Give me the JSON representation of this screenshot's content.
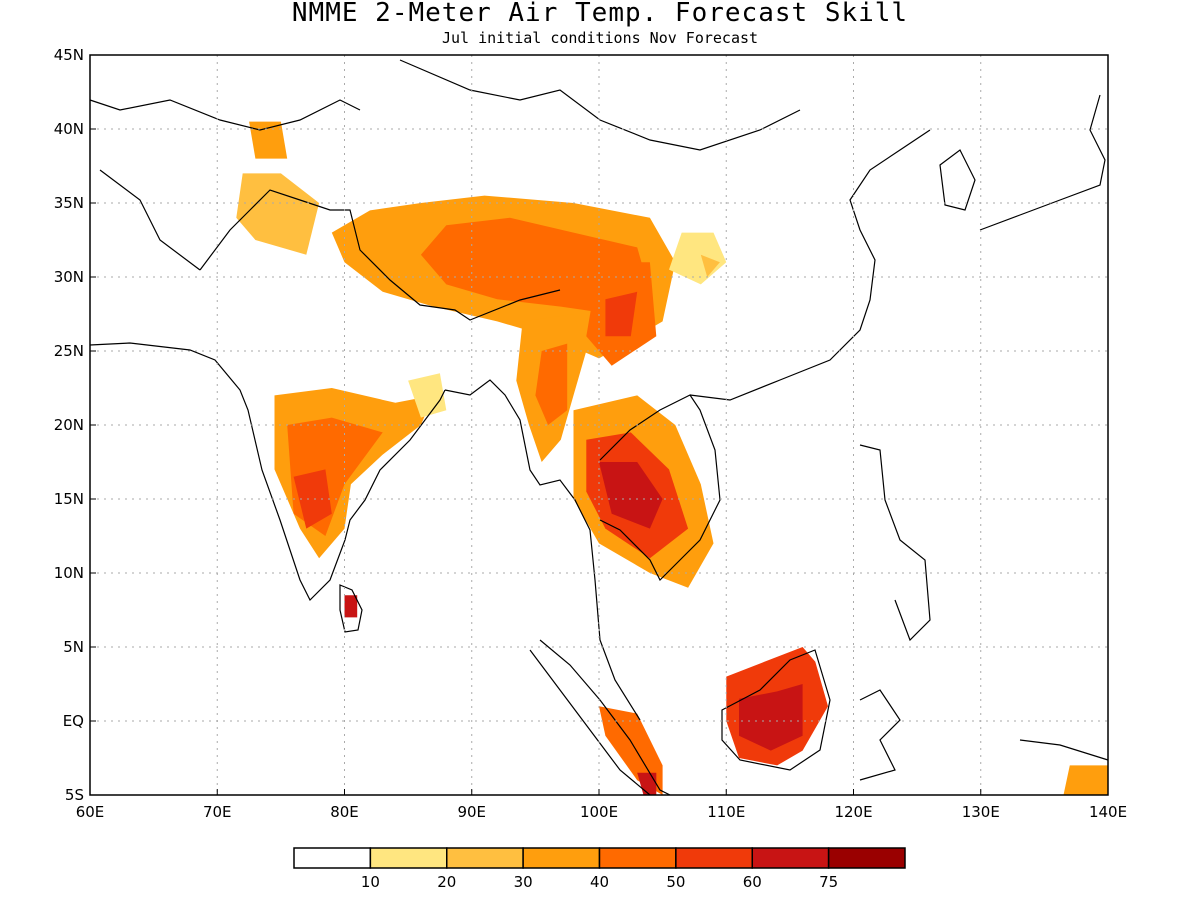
{
  "title": "NMME 2-Meter Air Temp. Forecast Skill",
  "subtitle": "Jul initial conditions   Nov Forecast",
  "map": {
    "lon_range": [
      60,
      140
    ],
    "lat_range": [
      -5,
      45
    ],
    "x_ticks": [
      "60E",
      "70E",
      "80E",
      "90E",
      "100E",
      "110E",
      "120E",
      "130E",
      "140E"
    ],
    "y_ticks": [
      "5S",
      "EQ",
      "5N",
      "10N",
      "15N",
      "20N",
      "25N",
      "30N",
      "35N",
      "40N",
      "45N"
    ],
    "grid": "dotted"
  },
  "colorbar": {
    "colors": [
      "#ffffff",
      "#ffe680",
      "#ffbf40",
      "#ff9e0d",
      "#ff6a00",
      "#f03a0a",
      "#c81414",
      "#9a0000"
    ],
    "labels": [
      "10",
      "20",
      "30",
      "40",
      "50",
      "60",
      "75"
    ]
  },
  "skill_regions": [
    {
      "name": "tibetan-plateau",
      "level": 3,
      "pts": [
        [
          86,
          35
        ],
        [
          91,
          35.5
        ],
        [
          98,
          35
        ],
        [
          104,
          34
        ],
        [
          106,
          31
        ],
        [
          105,
          27
        ],
        [
          100,
          24.5
        ],
        [
          96,
          26
        ],
        [
          92,
          27
        ],
        [
          87,
          28
        ],
        [
          83,
          29
        ],
        [
          80,
          31
        ],
        [
          79,
          33
        ],
        [
          82,
          34.5
        ]
      ]
    },
    {
      "name": "tibet-core",
      "level": 4,
      "pts": [
        [
          88,
          33.5
        ],
        [
          93,
          34
        ],
        [
          98,
          33
        ],
        [
          103,
          32
        ],
        [
          104,
          29
        ],
        [
          101,
          27.5
        ],
        [
          97,
          28
        ],
        [
          92,
          28.5
        ],
        [
          88,
          29.5
        ],
        [
          86,
          31.5
        ]
      ]
    },
    {
      "name": "sichuan-yunnan",
      "level": 4,
      "pts": [
        [
          100,
          31
        ],
        [
          104,
          31
        ],
        [
          104.5,
          26
        ],
        [
          101,
          24
        ],
        [
          99,
          26
        ]
      ]
    },
    {
      "name": "sichuan-core",
      "level": 5,
      "pts": [
        [
          100.5,
          28.5
        ],
        [
          103,
          29
        ],
        [
          102.5,
          26
        ],
        [
          100.5,
          26
        ]
      ]
    },
    {
      "name": "east-china-patch",
      "level": 1,
      "pts": [
        [
          106.5,
          33
        ],
        [
          109,
          33
        ],
        [
          110,
          31
        ],
        [
          108,
          29.5
        ],
        [
          105.5,
          30.5
        ]
      ]
    },
    {
      "name": "east-china-core",
      "level": 2,
      "pts": [
        [
          108,
          31.5
        ],
        [
          109.5,
          31
        ],
        [
          108.5,
          30
        ]
      ]
    },
    {
      "name": "myanmar",
      "level": 3,
      "pts": [
        [
          94,
          27
        ],
        [
          98,
          27.5
        ],
        [
          99,
          25
        ],
        [
          98,
          22
        ],
        [
          97,
          19
        ],
        [
          95.5,
          17.5
        ],
        [
          94.5,
          20
        ],
        [
          93.5,
          23
        ]
      ]
    },
    {
      "name": "myanmar-core",
      "level": 4,
      "pts": [
        [
          95.5,
          25
        ],
        [
          97.5,
          25.5
        ],
        [
          97.5,
          21
        ],
        [
          96,
          20
        ],
        [
          95,
          22
        ]
      ]
    },
    {
      "name": "indochina",
      "level": 3,
      "pts": [
        [
          98,
          21
        ],
        [
          103,
          22
        ],
        [
          106,
          20
        ],
        [
          108,
          16
        ],
        [
          109,
          12
        ],
        [
          107,
          9
        ],
        [
          104,
          10
        ],
        [
          100,
          12
        ],
        [
          98,
          15
        ]
      ]
    },
    {
      "name": "indochina-mid",
      "level": 5,
      "pts": [
        [
          99,
          19
        ],
        [
          102.5,
          19.5
        ],
        [
          105.5,
          17
        ],
        [
          107,
          13
        ],
        [
          104,
          11
        ],
        [
          100.5,
          13
        ],
        [
          99,
          15.5
        ]
      ]
    },
    {
      "name": "indochina-core",
      "level": 6,
      "pts": [
        [
          100,
          17.5
        ],
        [
          103,
          17.5
        ],
        [
          105,
          15
        ],
        [
          104,
          13
        ],
        [
          101,
          14
        ]
      ]
    },
    {
      "name": "india-deccan",
      "level": 3,
      "pts": [
        [
          74.5,
          22
        ],
        [
          79,
          22.5
        ],
        [
          84,
          21.5
        ],
        [
          87,
          22
        ],
        [
          86,
          20
        ],
        [
          83,
          18
        ],
        [
          80.5,
          16
        ],
        [
          80,
          13
        ],
        [
          78,
          11
        ],
        [
          76.5,
          13
        ],
        [
          74.5,
          17
        ]
      ]
    },
    {
      "name": "india-deccan-mid",
      "level": 4,
      "pts": [
        [
          75.5,
          20
        ],
        [
          79,
          20.5
        ],
        [
          83,
          19.5
        ],
        [
          80,
          16
        ],
        [
          78.5,
          12.5
        ],
        [
          76,
          14
        ]
      ]
    },
    {
      "name": "india-deccan-core",
      "level": 5,
      "pts": [
        [
          76,
          16.5
        ],
        [
          78.5,
          17
        ],
        [
          79,
          14
        ],
        [
          77,
          13
        ]
      ]
    },
    {
      "name": "northwest-india",
      "level": 2,
      "pts": [
        [
          72,
          37
        ],
        [
          75,
          37
        ],
        [
          78,
          35
        ],
        [
          77,
          31.5
        ],
        [
          73,
          32.5
        ],
        [
          71.5,
          34
        ]
      ]
    },
    {
      "name": "kyrgyzstan",
      "level": 3,
      "pts": [
        [
          72.5,
          40.5
        ],
        [
          75,
          40.5
        ],
        [
          75.5,
          38
        ],
        [
          73,
          38
        ]
      ]
    },
    {
      "name": "sri-lanka",
      "level": 6,
      "pts": [
        [
          80,
          8.5
        ],
        [
          81,
          8.5
        ],
        [
          81,
          7
        ],
        [
          80,
          7
        ]
      ]
    },
    {
      "name": "borneo",
      "level": 5,
      "pts": [
        [
          110,
          3
        ],
        [
          113,
          4
        ],
        [
          116,
          5
        ],
        [
          117,
          4
        ],
        [
          118,
          1
        ],
        [
          116,
          -2
        ],
        [
          114,
          -3
        ],
        [
          111,
          -2.5
        ],
        [
          110,
          0
        ]
      ]
    },
    {
      "name": "borneo-core",
      "level": 6,
      "pts": [
        [
          111,
          1.5
        ],
        [
          114,
          2
        ],
        [
          116,
          2.5
        ],
        [
          116,
          -1
        ],
        [
          113.5,
          -2
        ],
        [
          111,
          -1
        ]
      ]
    },
    {
      "name": "sumatra-south",
      "level": 4,
      "pts": [
        [
          100,
          1
        ],
        [
          103,
          0.5
        ],
        [
          105,
          -3
        ],
        [
          105,
          -5
        ],
        [
          103,
          -4
        ],
        [
          100.5,
          -1
        ]
      ]
    },
    {
      "name": "sumatra-core",
      "level": 6,
      "pts": [
        [
          103,
          -3.5
        ],
        [
          104.5,
          -3.5
        ],
        [
          104.5,
          -5
        ],
        [
          103.5,
          -5
        ]
      ]
    },
    {
      "name": "new-guinea",
      "level": 3,
      "pts": [
        [
          137,
          -3
        ],
        [
          140,
          -3
        ],
        [
          140,
          -5
        ],
        [
          136.5,
          -5
        ]
      ]
    },
    {
      "name": "bangladesh-patch",
      "level": 1,
      "pts": [
        [
          85,
          23
        ],
        [
          87.5,
          23.5
        ],
        [
          88,
          21
        ],
        [
          86,
          20.5
        ]
      ]
    }
  ]
}
